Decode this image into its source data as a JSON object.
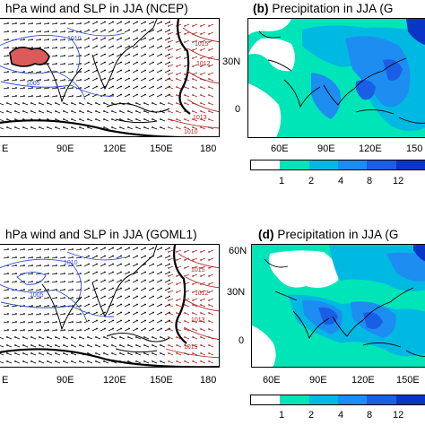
{
  "panels": {
    "a": {
      "title": "hPa wind and SLP in JJA (NCEP)",
      "lon_labels": [
        "E",
        "90E",
        "120E",
        "150E",
        "180"
      ],
      "isobars": [
        "1010",
        "1015",
        "1012",
        "1013",
        "1005",
        "1010"
      ]
    },
    "b": {
      "letter": "(b)",
      "title": "Precipitation in JJA (G",
      "lat_labels": [
        "30N",
        "0"
      ],
      "lon_labels": [
        "60E",
        "90E",
        "120E",
        "150"
      ]
    },
    "c": {
      "title": "hPa wind and SLP in JJA (GOML1)",
      "lon_labels": [
        "E",
        "90E",
        "120E",
        "150E",
        "180"
      ],
      "isobars": [
        "1010",
        "1015",
        "1012",
        "1013",
        "1005",
        "1015"
      ]
    },
    "d": {
      "letter": "(d)",
      "title": "Precipitation in JJA (G",
      "lat_labels": [
        "60N",
        "30N",
        "0"
      ],
      "lon_labels": [
        "60E",
        "90E",
        "120E",
        "150E"
      ]
    }
  },
  "colorbar_top": {
    "labels": [
      "1",
      "2",
      "4",
      "8",
      "12"
    ]
  },
  "colorbar_bottom": {
    "labels": [
      "1",
      "2",
      "4",
      "8",
      "12"
    ]
  },
  "colors": {
    "precip_levels": [
      "#ffffff",
      "#00e5b8",
      "#00b9e2",
      "#1d8df2",
      "#1a5ee6",
      "#0a36c7"
    ],
    "isobar_high": "#b22222",
    "isobar_low": "#2d4fd6",
    "land_outline": "#000000"
  }
}
